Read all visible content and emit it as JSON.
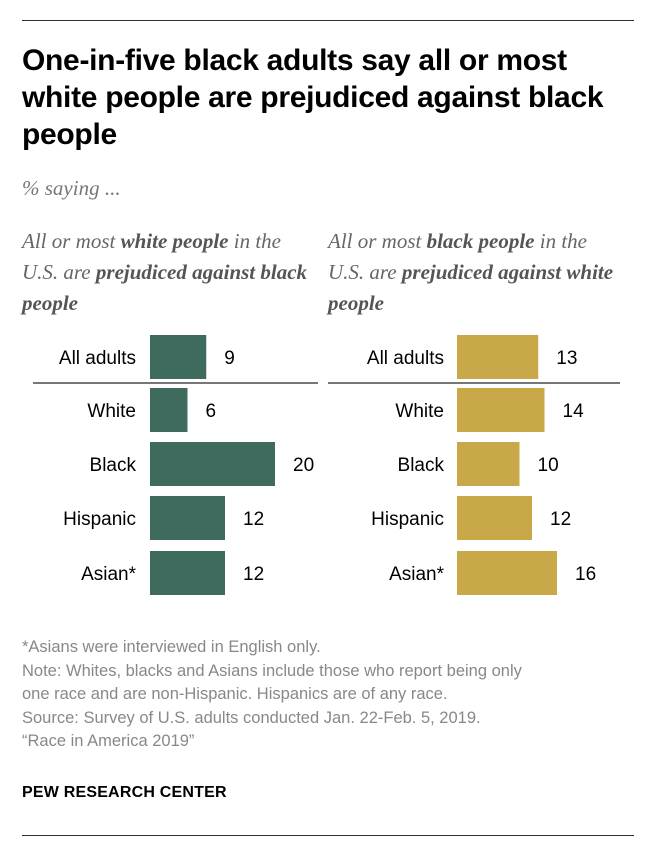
{
  "title": "One-in-five black adults say all or most white people are prejudiced against black people",
  "subtitle": "% saying ...",
  "panels": [
    {
      "title_parts": [
        {
          "text": "All or most ",
          "bold": false
        },
        {
          "text": "white people",
          "bold": true
        },
        {
          "text": " in the U.S. are ",
          "bold": false
        },
        {
          "text": "prejudiced against black people",
          "bold": true
        }
      ]
    },
    {
      "title_parts": [
        {
          "text": "All or most ",
          "bold": false
        },
        {
          "text": "black people",
          "bold": true
        },
        {
          "text": " in the U.S. are ",
          "bold": false
        },
        {
          "text": "prejudiced against white people",
          "bold": true
        }
      ]
    }
  ],
  "chart_data": {
    "type": "bar",
    "orientation": "horizontal",
    "categories": [
      "All adults",
      "White",
      "Black",
      "Hispanic",
      "Asian*"
    ],
    "series": [
      {
        "name": "All or most white people in the U.S. are prejudiced against black people",
        "values": [
          9,
          6,
          20,
          12,
          12
        ],
        "color": "#3f6b5e"
      },
      {
        "name": "All or most black people in the U.S. are prejudiced against white people",
        "values": [
          13,
          14,
          10,
          12,
          16
        ],
        "color": "#c9a84a"
      }
    ],
    "xlim": [
      0,
      20
    ],
    "grid": false,
    "legend": "none"
  },
  "footnotes": [
    "*Asians were interviewed in English only.",
    "Note: Whites, blacks and Asians include those who report being only",
    "one race and are non-Hispanic. Hispanics are of any race.",
    "Source: Survey of U.S. adults conducted Jan. 22-Feb. 5, 2019.",
    "“Race in America 2019”"
  ],
  "brand": "PEW RESEARCH CENTER"
}
